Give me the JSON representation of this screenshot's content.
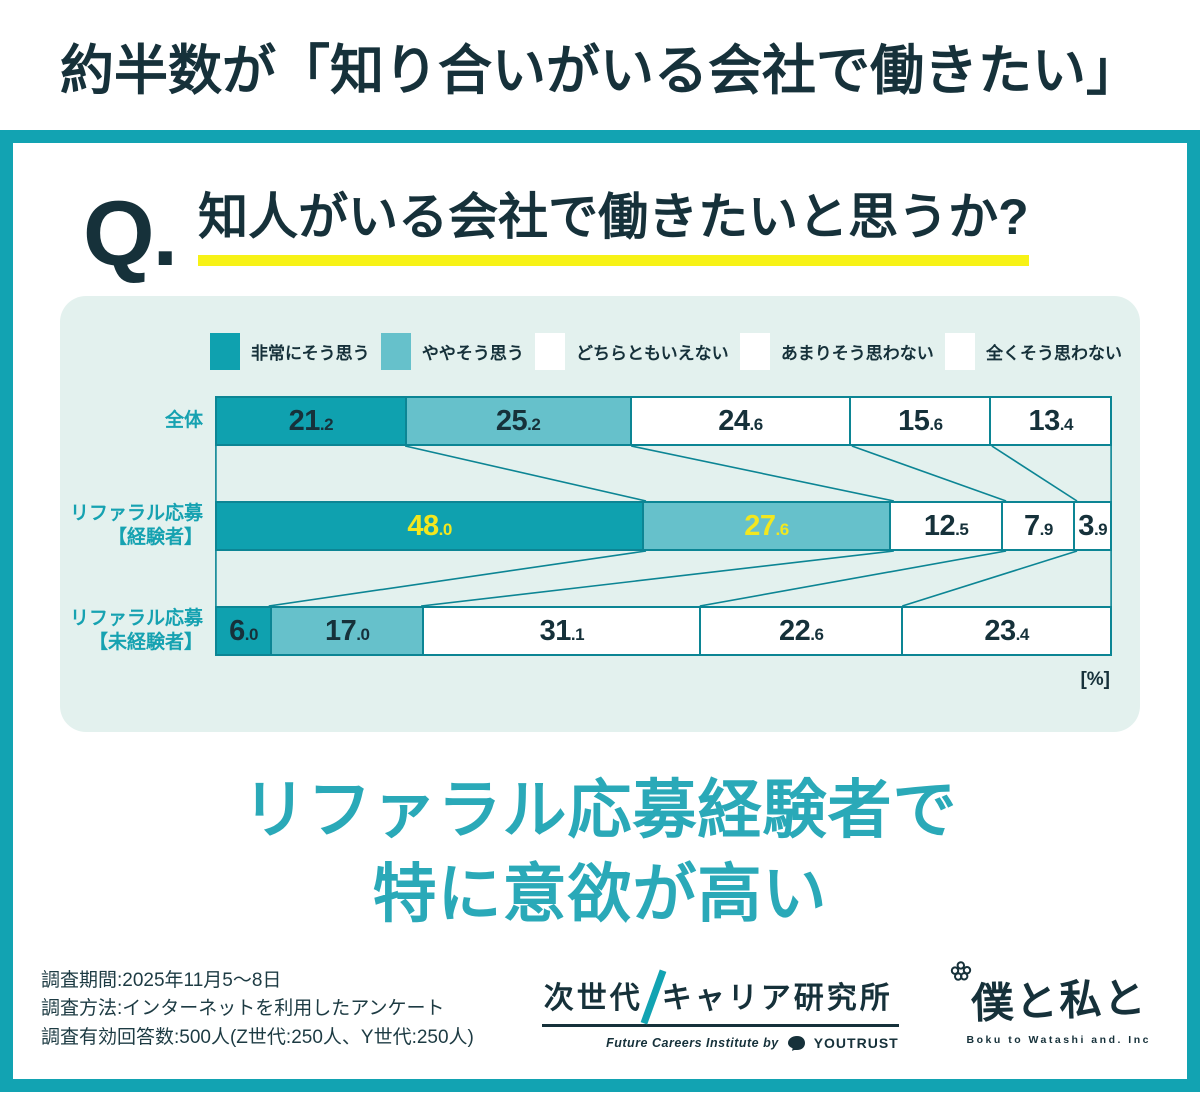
{
  "banner": {
    "title": "約半数が「知り合いがいる会社で働きたい」"
  },
  "question": {
    "q_mark": "Q.",
    "text": "知人がいる会社で働きたいと思うか?"
  },
  "chart_data": {
    "type": "bar",
    "orientation": "horizontal-stacked",
    "unit": "%",
    "unit_label": "[%]",
    "xlim": [
      0,
      100
    ],
    "legend_position": "top",
    "grid": false,
    "categories": [
      "非常にそう思う",
      "ややそう思う",
      "どちらともいえない",
      "あまりそう思わない",
      "全くそう思わない"
    ],
    "legend": [
      {
        "label": "非常にそう思う",
        "color": "#0fa1af"
      },
      {
        "label": "ややそう思う",
        "color": "#66c1cb"
      },
      {
        "label": "どちらともいえない",
        "color": "#ffffff"
      },
      {
        "label": "あまりそう思わない",
        "color": "#ffffff"
      },
      {
        "label": "全くそう思わない",
        "color": "#ffffff"
      }
    ],
    "rows": [
      {
        "label": "全体",
        "label_lines": [
          "全体"
        ],
        "values": [
          21.2,
          25.2,
          24.6,
          15.6,
          13.4
        ],
        "value_colors": [
          "dark",
          "dark",
          "dark",
          "dark",
          "dark"
        ]
      },
      {
        "label": "リファラル応募【経験者】",
        "label_lines": [
          "リファラル応募",
          "【経験者】"
        ],
        "values": [
          48.0,
          27.6,
          12.5,
          7.9,
          3.9
        ],
        "value_colors": [
          "yellow",
          "yellow",
          "dark",
          "dark",
          "dark"
        ]
      },
      {
        "label": "リファラル応募【未経験者】",
        "label_lines": [
          "リファラル応募",
          "【未経験者】"
        ],
        "values": [
          6.0,
          17.0,
          31.1,
          22.6,
          23.4
        ],
        "value_colors": [
          "dark",
          "dark",
          "dark",
          "dark",
          "dark"
        ]
      }
    ]
  },
  "insight": {
    "line1": "リファラル応募経験者で",
    "line2": "特に意欲が高い"
  },
  "survey": {
    "lines": [
      "調査期間:2025年11月5〜8日",
      "調査方法:インターネットを利用したアンケート",
      "調査有効回答数:500人(Z世代:250人、Y世代:250人)"
    ]
  },
  "institute": {
    "name_part1": "次世代",
    "name_part2": "キャリア研究所",
    "subtitle": "Future Careers Institute by",
    "brand": "YOUTRUST"
  },
  "company": {
    "name": "僕と私と",
    "caption": "Boku to Watashi and. Inc"
  },
  "colors": {
    "teal": "#12a3b2",
    "panel": "#e3f1ee",
    "line": "#0c8594",
    "dark": "#16313a",
    "yellow": "#f2e71f",
    "underline": "#f7f216",
    "catch": "#2aa9b8",
    "labelTeal": "#16a2b1"
  }
}
